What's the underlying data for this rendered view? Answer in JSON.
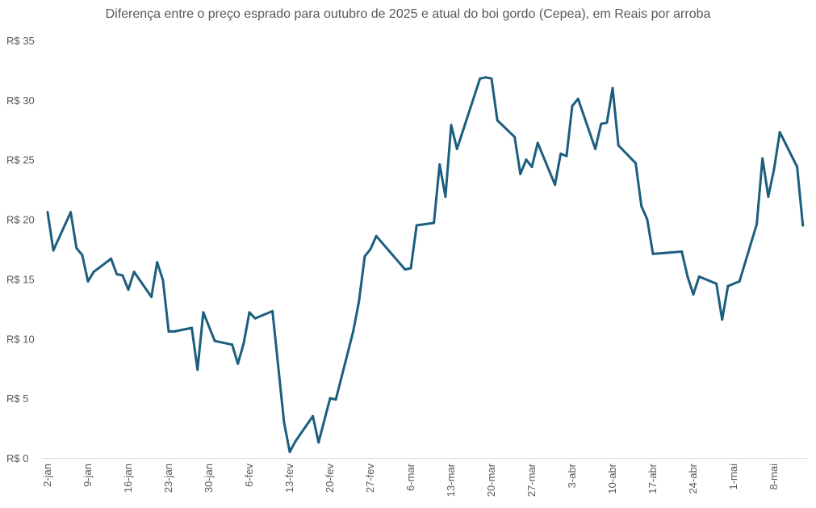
{
  "chart_data": {
    "type": "line",
    "title": "Diferença entre o preço esprado para outubro de 2025 e atual do boi gordo (Cepea), em Reais por arroba",
    "xlabel": "",
    "ylabel": "",
    "ylim": [
      0,
      35
    ],
    "y_ticks": [
      0,
      5,
      10,
      15,
      20,
      25,
      30,
      35
    ],
    "y_tick_labels": [
      "R$ 0",
      "R$ 5",
      "R$ 10",
      "R$ 15",
      "R$ 20",
      "R$ 25",
      "R$ 30",
      "R$ 35"
    ],
    "x_unit": "days since 2-jan",
    "xlim": [
      0,
      131
    ],
    "x_ticks": [
      0,
      7,
      14,
      21,
      28,
      35,
      42,
      49,
      56,
      63,
      70,
      77,
      84,
      91,
      98,
      105,
      112,
      119,
      126
    ],
    "x_tick_labels": [
      "2-jan",
      "9-jan",
      "16-jan",
      "23-jan",
      "30-jan",
      "6-fev",
      "13-fev",
      "20-fev",
      "27-fev",
      "6-mar",
      "13-mar",
      "20-mar",
      "27-mar",
      "3-abr",
      "10-abr",
      "17-abr",
      "24-abr",
      "1-mai",
      "8-mai"
    ],
    "grid": false,
    "color": "#1b5e7e",
    "series": [
      {
        "name": "Diferença",
        "x": [
          0,
          1,
          4,
          5,
          6,
          7,
          8,
          11,
          12,
          13,
          14,
          15,
          18,
          19,
          20,
          21,
          22,
          25,
          26,
          27,
          28,
          29,
          32,
          33,
          34,
          35,
          36,
          39,
          41,
          42,
          43,
          46,
          47,
          49,
          50,
          53,
          54,
          55,
          56,
          57,
          62,
          63,
          64,
          67,
          68,
          69,
          70,
          71,
          75,
          76,
          77,
          78,
          81,
          82,
          83,
          84,
          85,
          88,
          89,
          90,
          91,
          92,
          95,
          96,
          97,
          98,
          99,
          102,
          103,
          104,
          105,
          110,
          111,
          112,
          113,
          116,
          117,
          118,
          120,
          123,
          124,
          125,
          126,
          127,
          130,
          131
        ],
        "values": [
          20.6,
          17.4,
          20.6,
          17.6,
          17.0,
          14.8,
          15.6,
          16.7,
          15.4,
          15.3,
          14.1,
          15.6,
          13.5,
          16.4,
          14.9,
          10.6,
          10.6,
          10.9,
          7.4,
          12.2,
          11.0,
          9.8,
          9.5,
          7.9,
          9.6,
          12.2,
          11.7,
          12.3,
          3.0,
          0.5,
          1.4,
          3.5,
          1.3,
          5.0,
          4.9,
          10.6,
          13.1,
          16.9,
          17.5,
          18.6,
          15.8,
          15.9,
          19.5,
          19.7,
          24.6,
          21.9,
          27.9,
          25.9,
          31.8,
          31.9,
          31.8,
          28.3,
          26.9,
          23.8,
          25.0,
          24.4,
          26.4,
          22.9,
          25.5,
          25.3,
          29.5,
          30.1,
          25.9,
          28.0,
          28.1,
          31.0,
          26.2,
          24.7,
          21.1,
          20.0,
          17.1,
          17.3,
          15.2,
          13.7,
          15.2,
          14.6,
          11.6,
          14.4,
          14.8,
          19.6,
          25.1,
          21.9,
          24.2,
          27.3,
          24.4,
          19.5
        ]
      }
    ]
  }
}
